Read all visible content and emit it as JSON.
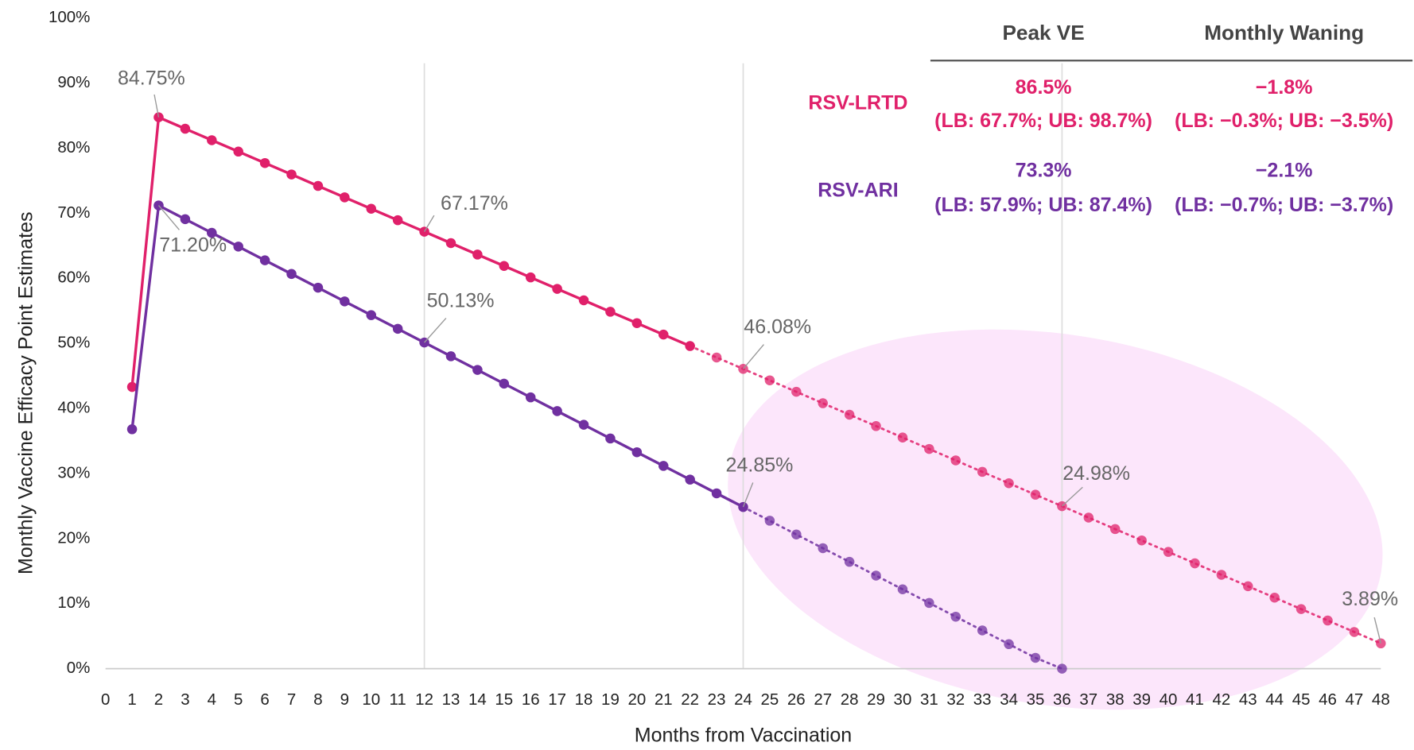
{
  "chart_data": {
    "type": "line",
    "x_label": "Months from Vaccination",
    "y_label": "Monthly Vaccine Efficacy Point Estimates",
    "xlim": [
      0,
      48
    ],
    "xticks": [
      0,
      1,
      2,
      3,
      4,
      5,
      6,
      7,
      8,
      9,
      10,
      11,
      12,
      13,
      14,
      15,
      16,
      17,
      18,
      19,
      20,
      21,
      22,
      23,
      24,
      25,
      26,
      27,
      28,
      29,
      30,
      31,
      32,
      33,
      34,
      35,
      36,
      37,
      38,
      39,
      40,
      41,
      42,
      43,
      44,
      45,
      46,
      47,
      48
    ],
    "ylim": [
      0,
      100
    ],
    "yticks": [
      {
        "value": 0,
        "label": "0%"
      },
      {
        "value": 10,
        "label": "10%"
      },
      {
        "value": 20,
        "label": "20%"
      },
      {
        "value": 30,
        "label": "30%"
      },
      {
        "value": 40,
        "label": "40%"
      },
      {
        "value": 50,
        "label": "50%"
      },
      {
        "value": 60,
        "label": "60%"
      },
      {
        "value": 70,
        "label": "70%"
      },
      {
        "value": 80,
        "label": "80%"
      },
      {
        "value": 90,
        "label": "90%"
      },
      {
        "value": 100,
        "label": "100%"
      }
    ],
    "x_gridlines": [
      12,
      24,
      36
    ],
    "x": [
      1,
      2,
      3,
      4,
      5,
      6,
      7,
      8,
      9,
      10,
      11,
      12,
      13,
      14,
      15,
      16,
      17,
      18,
      19,
      20,
      21,
      22,
      23,
      24,
      25,
      26,
      27,
      28,
      29,
      30,
      31,
      32,
      33,
      34,
      35,
      36,
      37,
      38,
      39,
      40,
      41,
      42,
      43,
      44,
      45,
      46,
      47,
      48
    ],
    "series": [
      {
        "name": "RSV-LRTD",
        "color": "#e0206a",
        "dotted_from": 22,
        "values": [
          43.3,
          84.75,
          82.99,
          81.23,
          79.48,
          77.72,
          75.96,
          74.2,
          72.44,
          70.69,
          68.93,
          67.17,
          65.41,
          63.65,
          61.9,
          60.14,
          58.38,
          56.62,
          54.86,
          53.11,
          51.35,
          49.59,
          47.83,
          46.08,
          44.32,
          42.56,
          40.8,
          39.04,
          37.29,
          35.53,
          33.77,
          32.01,
          30.25,
          28.5,
          26.74,
          24.98,
          23.22,
          21.46,
          19.71,
          17.95,
          16.19,
          14.43,
          12.67,
          10.92,
          9.16,
          7.4,
          5.64,
          3.89
        ],
        "value_labels": [
          null,
          "84.75%",
          null,
          null,
          null,
          null,
          null,
          null,
          null,
          null,
          null,
          "67.17%",
          null,
          null,
          null,
          null,
          null,
          null,
          null,
          null,
          null,
          null,
          null,
          "46.08%",
          null,
          null,
          null,
          null,
          null,
          null,
          null,
          null,
          null,
          null,
          null,
          "24.98%",
          null,
          null,
          null,
          null,
          null,
          null,
          null,
          null,
          null,
          null,
          null,
          "3.89%"
        ]
      },
      {
        "name": "RSV-ARI",
        "color": "#7030a0",
        "dotted_from": 24,
        "values": [
          36.8,
          71.2,
          69.09,
          66.99,
          64.88,
          62.77,
          60.67,
          58.56,
          56.45,
          54.34,
          52.24,
          50.13,
          48.02,
          45.92,
          43.81,
          41.7,
          39.59,
          37.49,
          35.38,
          33.27,
          31.17,
          29.06,
          26.95,
          24.85,
          22.74,
          20.63,
          18.52,
          16.42,
          14.31,
          12.2,
          10.1,
          7.99,
          5.88,
          3.77,
          1.67,
          0,
          null,
          null,
          null,
          null,
          null,
          null,
          null,
          null,
          null,
          null,
          null,
          null
        ],
        "value_labels": [
          null,
          "71.20%",
          null,
          null,
          null,
          null,
          null,
          null,
          null,
          null,
          null,
          "50.13%",
          null,
          null,
          null,
          null,
          null,
          null,
          null,
          null,
          null,
          null,
          null,
          "24.85%",
          null,
          null,
          null,
          null,
          null,
          null,
          null,
          null,
          null,
          null,
          null,
          null,
          null,
          null,
          null,
          null,
          null,
          null,
          null,
          null,
          null,
          null,
          null,
          null
        ]
      }
    ],
    "table": {
      "columns": [
        "Peak VE",
        "Monthly Waning"
      ],
      "rows": [
        [
          "86.5%",
          "(LB: 67.7%; UB: 98.7%)",
          "−1.8%",
          "(LB: −0.3%; UB: −3.5%)"
        ],
        [
          "73.3%",
          "(LB: 57.9%; UB: 87.4%)",
          "−2.1%",
          "(LB: −0.7%; UB: −3.7%)"
        ]
      ]
    }
  }
}
